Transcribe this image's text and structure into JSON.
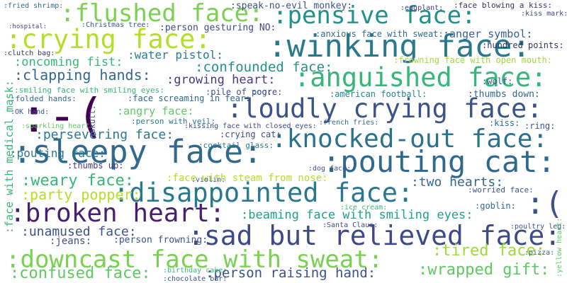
{
  "words": [
    ":flushed face:",
    ":pensive face:",
    ":crying face:",
    ":winking face:",
    ":speak-no-evil monkey:",
    ":face blowing a kiss:",
    ":anguished face:",
    ":-(",
    ":loudly crying face:",
    ":knocked-out face:",
    ":sleepy face:",
    ":pouting cat:",
    ":disappointed face:",
    ":broken heart:",
    ":sad but relieved face:",
    ":downcast face with sweat:",
    ":confused face:",
    ":person raising hand:",
    ":wrapped gift:",
    ":tired face:",
    ":beaming face with smiling eyes:",
    ":(",
    ":weary face:",
    ":party popper:",
    ":pouting face:",
    ":persevering face:",
    ":clapping hands:",
    ":oncoming fist:",
    ":confounded face:",
    ":growing heart:",
    ":water pistol:",
    ":angry face:",
    ":two hearts:",
    ":face with steam from nose:",
    ":unamused face:",
    ":smiling face with smiling eyes:",
    ":anger symbol:",
    ":frowning face with open mouth:",
    ":anxious face with sweat:",
    ":person gesturing NO:",
    ":thumbs down:",
    ":american football:",
    ":crying cat:",
    ":cocktail glass:",
    ":thumbs up:",
    ":jeans:",
    ":person frowning:",
    ":face with medical mask:",
    ":ogre:",
    ":pile of poo:",
    ":face screaming in fear:",
    ":person with veil:",
    ":hundred points:",
    ":worried face:",
    ":goblin:",
    ":ring:",
    ":kiss:",
    ":kissing face with closed eyes:",
    ":french fries:",
    ":ice cream:",
    ":Christmas tree:",
    ":fried shrimp:",
    ":hospital:",
    ":clutch bag:",
    ":folded hands:",
    ":OK hand:",
    ":sparkling heart:",
    ":skull:",
    ":violin:",
    ":dog face:",
    ":Santa Claus:",
    ":birthday cake:",
    ":chocolate bar:",
    ":poultry leg:",
    ":pizza:",
    ":wolf:",
    ":yellow heart:",
    ":kiss mark:",
    ":eggplant:"
  ]
}
